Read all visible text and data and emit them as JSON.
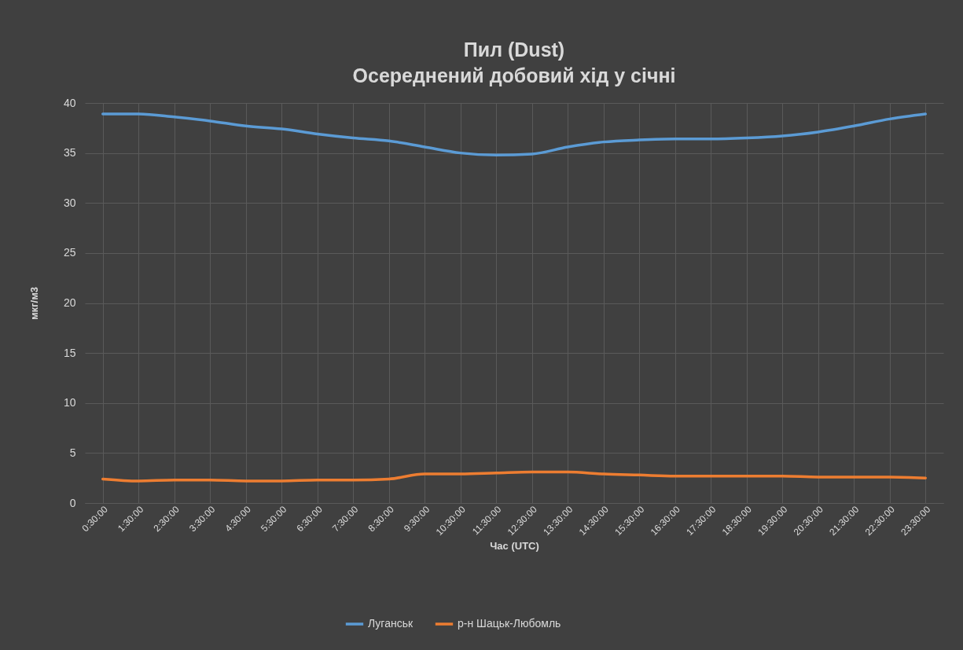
{
  "chart_data": {
    "type": "line",
    "title": "Пил (Dust)",
    "subtitle": "Осереднений добовий хід у січні",
    "xlabel": "Час (UTC)",
    "ylabel": "мкг/м3",
    "categories": [
      "0:30:00",
      "1:30:00",
      "2:30:00",
      "3:30:00",
      "4:30:00",
      "5:30:00",
      "6:30:00",
      "7:30:00",
      "8:30:00",
      "9:30:00",
      "10:30:00",
      "11:30:00",
      "12:30:00",
      "13:30:00",
      "14:30:00",
      "15:30:00",
      "16:30:00",
      "17:30:00",
      "18:30:00",
      "19:30:00",
      "20:30:00",
      "21:30:00",
      "22:30:00",
      "23:30:00"
    ],
    "series": [
      {
        "name": "Луганськ",
        "color": "#5b9bd5",
        "values": [
          38.9,
          38.9,
          38.6,
          38.2,
          37.7,
          37.4,
          36.9,
          36.5,
          36.2,
          35.6,
          35.0,
          34.8,
          34.9,
          35.6,
          36.1,
          36.3,
          36.4,
          36.4,
          36.5,
          36.7,
          37.1,
          37.7,
          38.4,
          38.9
        ]
      },
      {
        "name": "р-н Шацьк-Любомль",
        "color": "#ed7d31",
        "values": [
          2.4,
          2.2,
          2.3,
          2.3,
          2.2,
          2.2,
          2.3,
          2.3,
          2.4,
          2.9,
          2.9,
          3.0,
          3.1,
          3.1,
          2.9,
          2.8,
          2.7,
          2.7,
          2.7,
          2.7,
          2.6,
          2.6,
          2.6,
          2.5
        ]
      }
    ],
    "ylim": [
      0,
      40
    ],
    "yticks": [
      0,
      5,
      10,
      15,
      20,
      25,
      30,
      35,
      40
    ],
    "grid": true,
    "legend": "bottom",
    "marker": "none",
    "line_style": "solid"
  }
}
